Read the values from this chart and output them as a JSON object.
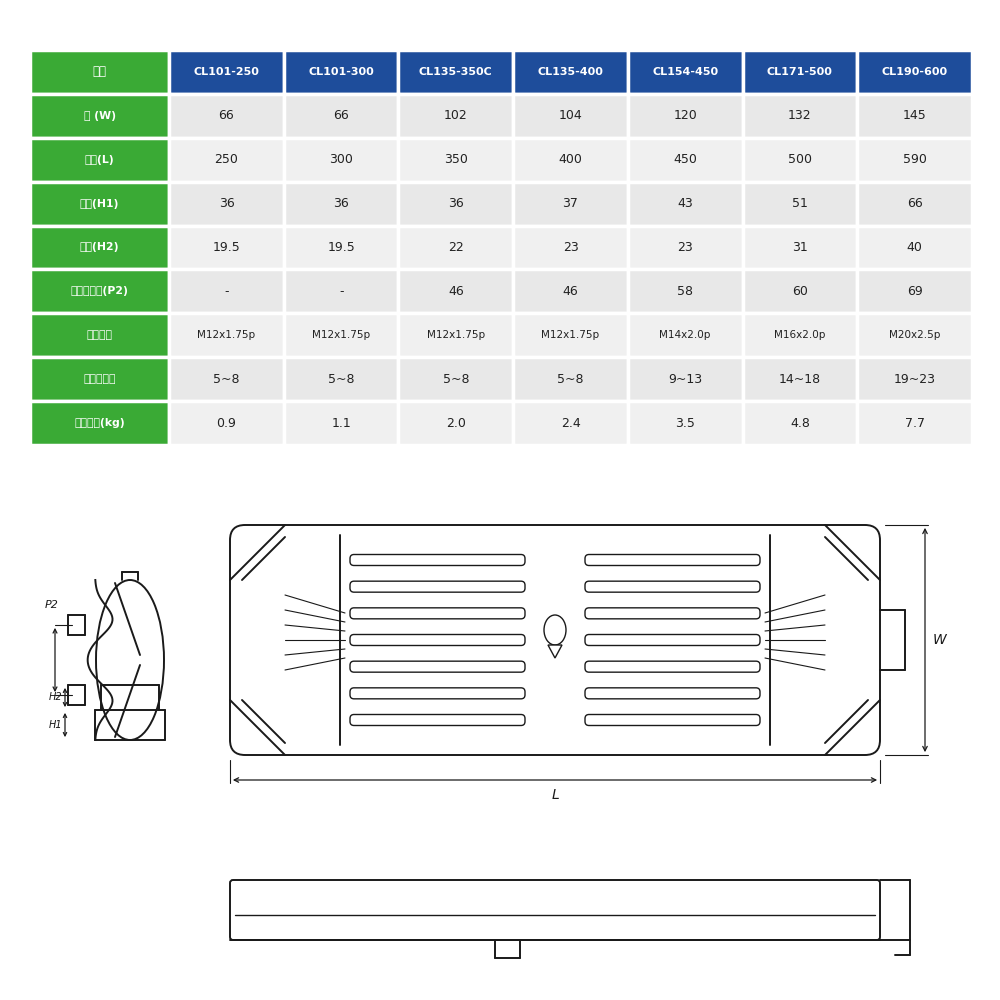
{
  "bg_color": "#ffffff",
  "table_header_bg": "#1e4d9b",
  "table_header_text": "#ffffff",
  "row_label_bg": "#3aaa35",
  "row_label_text": "#ffffff",
  "row_even_bg": "#e8e8e8",
  "row_odd_bg": "#f0f0f0",
  "cell_text_color": "#222222",
  "border_color": "#ffffff",
  "header_row": [
    "品名",
    "CL101-250",
    "CL101-300",
    "CL135-350C",
    "CL135-400",
    "CL154-450",
    "CL171-500",
    "CL190-600"
  ],
  "row_labels": [
    "幅 (W)",
    "長さ(L)",
    "高さ(H1)",
    "高さ(H2)",
    "取付ピッチ(P2)",
    "取付ネジ",
    "締付トルク",
    "製品重量(kg)"
  ],
  "table_data": [
    [
      "66",
      "66",
      "102",
      "104",
      "120",
      "132",
      "145"
    ],
    [
      "250",
      "300",
      "350",
      "400",
      "450",
      "500",
      "590"
    ],
    [
      "36",
      "36",
      "36",
      "37",
      "43",
      "51",
      "66"
    ],
    [
      "19.5",
      "19.5",
      "22",
      "23",
      "23",
      "31",
      "40"
    ],
    [
      "-",
      "-",
      "46",
      "46",
      "58",
      "60",
      "69"
    ],
    [
      "M12x1.75p",
      "M12x1.75p",
      "M12x1.75p",
      "M12x1.75p",
      "M14x2.0p",
      "M16x2.0p",
      "M20x2.5p"
    ],
    [
      "5~8",
      "5~8",
      "5~8",
      "5~8",
      "9~13",
      "14~18",
      "19~23"
    ],
    [
      "0.9",
      "1.1",
      "2.0",
      "2.4",
      "3.5",
      "4.8",
      "7.7"
    ]
  ],
  "diagram_color": "#1a1a1a",
  "diagram_bg": "#ffffff"
}
